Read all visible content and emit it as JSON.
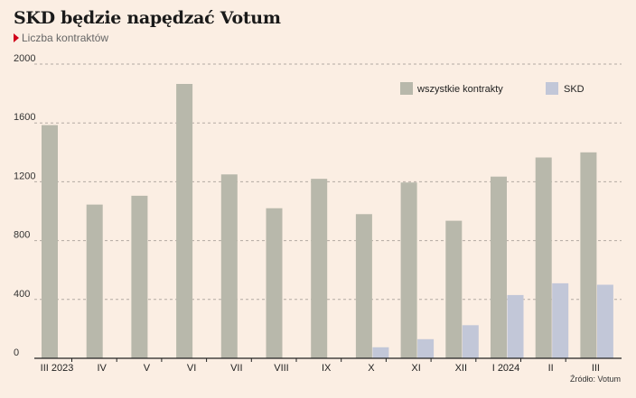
{
  "header": {
    "title": "SKD będzie napędzać Votum",
    "subtitle": "Liczba kontraktów"
  },
  "source": "Źródło: Votum",
  "colors": {
    "background": "#fbeee3",
    "series_all": "#b8b8ab",
    "series_skd": "#c2c7d8",
    "accent": "#d0021b"
  },
  "chart_data": {
    "type": "bar",
    "categories": [
      "III 2023",
      "IV",
      "V",
      "VI",
      "VII",
      "VIII",
      "IX",
      "X",
      "XI",
      "XII",
      "I 2024",
      "II",
      "III"
    ],
    "series": [
      {
        "name": "wszystkie kontrakty",
        "values": [
          1585,
          1045,
          1105,
          1865,
          1250,
          1020,
          1220,
          980,
          1195,
          935,
          1235,
          1365,
          1400
        ]
      },
      {
        "name": "SKD",
        "values": [
          0,
          0,
          0,
          0,
          0,
          0,
          0,
          75,
          130,
          225,
          430,
          510,
          500
        ]
      }
    ],
    "yticks": [
      "0",
      "400",
      "800",
      "1200",
      "1600",
      "2000"
    ],
    "ylim": [
      0,
      2000
    ],
    "grid": true,
    "legend_position": "top-right"
  }
}
